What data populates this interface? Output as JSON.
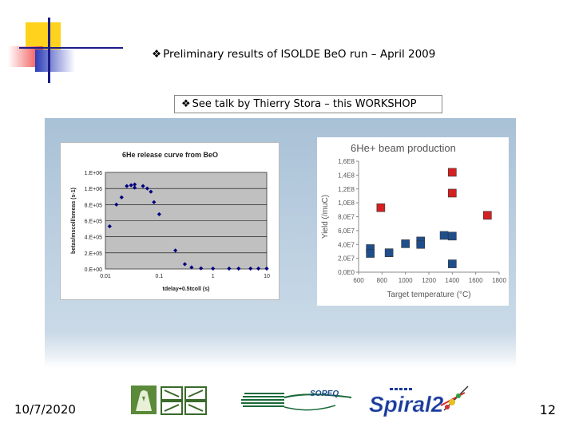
{
  "slide": {
    "bullet_glyph": "❖",
    "title": "Preliminary results of ISOLDE BeO run – April 2009",
    "subtitle": "See talk by Thierry Stora – this WORKSHOP",
    "date": "10/7/2020",
    "page_number": "12",
    "logos": [
      {
        "name": "institute-logo",
        "text": ""
      },
      {
        "name": "soreq-logo",
        "text": "SOREQ"
      },
      {
        "name": "spiral2-logo",
        "text": "Spiral2"
      }
    ]
  },
  "chart_data": [
    {
      "type": "scatter",
      "title": "6He release curve from BeO",
      "xlabel": "tdelay+0.5tcoll (s)",
      "ylabel": "betas/mscoll/smeas (s-1)",
      "xscale": "log",
      "xlim": [
        0.01,
        10
      ],
      "ylim": [
        0,
        1200000
      ],
      "x_ticks": [
        "0.01",
        "0.1",
        "1",
        "10"
      ],
      "y_ticks": [
        "0.E+00",
        "2.E+05",
        "4.E+05",
        "6.E+05",
        "8.E+05",
        "1.E+06",
        "1.E+06"
      ],
      "grid": true,
      "plot_background": "#c0c0c0",
      "marker_color": "#000080",
      "points": [
        {
          "x": 0.012,
          "y": 530000
        },
        {
          "x": 0.016,
          "y": 800000
        },
        {
          "x": 0.02,
          "y": 890000
        },
        {
          "x": 0.025,
          "y": 1030000
        },
        {
          "x": 0.03,
          "y": 1040000
        },
        {
          "x": 0.035,
          "y": 1050000
        },
        {
          "x": 0.035,
          "y": 1010000
        },
        {
          "x": 0.05,
          "y": 1030000
        },
        {
          "x": 0.06,
          "y": 1000000
        },
        {
          "x": 0.07,
          "y": 960000
        },
        {
          "x": 0.08,
          "y": 830000
        },
        {
          "x": 0.1,
          "y": 680000
        },
        {
          "x": 0.2,
          "y": 230000
        },
        {
          "x": 0.3,
          "y": 60000
        },
        {
          "x": 0.4,
          "y": 20000
        },
        {
          "x": 0.6,
          "y": 8000
        },
        {
          "x": 1.0,
          "y": 5000
        },
        {
          "x": 2.0,
          "y": 5000
        },
        {
          "x": 3.0,
          "y": 5000
        },
        {
          "x": 5.0,
          "y": 5000
        },
        {
          "x": 7.0,
          "y": 5000
        },
        {
          "x": 10.0,
          "y": 5000
        }
      ]
    },
    {
      "type": "scatter",
      "title": "6He+ beam production",
      "xlabel": "Target temperature (°C)",
      "ylabel": "Yield (/muC)",
      "xlim": [
        600,
        1800
      ],
      "ylim": [
        0,
        160000000
      ],
      "x_ticks": [
        "600",
        "800",
        "1000",
        "1200",
        "1400",
        "1600",
        "1800"
      ],
      "y_ticks": [
        "0,0E0",
        "2,0E7",
        "4,0E7",
        "6,0E7",
        "8,0E7",
        "1,0E8",
        "1,2E8",
        "1,4E8",
        "1,6E8"
      ],
      "grid": false,
      "series": [
        {
          "color": "#d42020",
          "points": [
            {
              "x": 790,
              "y": 93000000
            },
            {
              "x": 1400,
              "y": 144000000
            },
            {
              "x": 1400,
              "y": 114000000
            },
            {
              "x": 1700,
              "y": 82000000
            }
          ]
        },
        {
          "color": "#1f4e8c",
          "points": [
            {
              "x": 700,
              "y": 34000000
            },
            {
              "x": 700,
              "y": 27000000
            },
            {
              "x": 860,
              "y": 28000000
            },
            {
              "x": 1000,
              "y": 41000000
            },
            {
              "x": 1130,
              "y": 45000000
            },
            {
              "x": 1130,
              "y": 40000000
            },
            {
              "x": 1330,
              "y": 53000000
            },
            {
              "x": 1400,
              "y": 52000000
            },
            {
              "x": 1400,
              "y": 12000000
            }
          ]
        }
      ]
    }
  ]
}
